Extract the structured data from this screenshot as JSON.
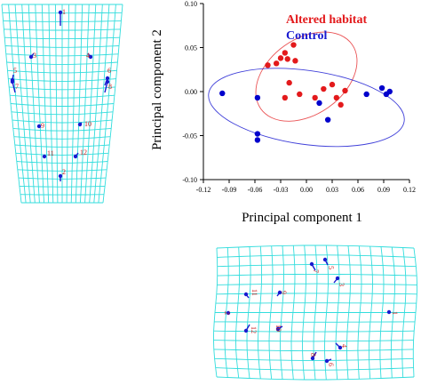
{
  "chart_data": {
    "type": "scatter",
    "title": "",
    "xlabel": "Principal component 1",
    "ylabel": "Principal component 2",
    "xlim": [
      -0.12,
      0.12
    ],
    "ylim": [
      -0.1,
      0.1
    ],
    "xticks": [
      -0.12,
      -0.09,
      -0.06,
      -0.03,
      0,
      0.03,
      0.06,
      0.09,
      0.12
    ],
    "xtick_labels": [
      "-0.12",
      "-0.09",
      "-0.06",
      "-0.03",
      "0.00",
      "0.03",
      "0.06",
      "0.09",
      "0.12"
    ],
    "yticks": [
      -0.1,
      -0.05,
      0,
      0.05,
      0.1
    ],
    "ytick_labels": [
      "-0.10",
      "-0.05",
      "0.00",
      "0.05",
      "0.10"
    ],
    "grid": false,
    "legend_position": "top-right",
    "series": [
      {
        "name": "Altered habitat",
        "color": "#e31a1c",
        "points": [
          [
            -0.015,
            0.053
          ],
          [
            -0.025,
            0.044
          ],
          [
            -0.03,
            0.038
          ],
          [
            -0.022,
            0.037
          ],
          [
            -0.013,
            0.035
          ],
          [
            -0.045,
            0.03
          ],
          [
            -0.035,
            0.032
          ],
          [
            -0.02,
            0.01
          ],
          [
            -0.025,
            -0.007
          ],
          [
            -0.008,
            -0.003
          ],
          [
            0.02,
            0.003
          ],
          [
            0.03,
            0.008
          ],
          [
            0.035,
            -0.007
          ],
          [
            0.045,
            0.001
          ],
          [
            0.04,
            -0.015
          ],
          [
            0.01,
            -0.007
          ]
        ]
      },
      {
        "name": "Control",
        "color": "#0000cc",
        "points": [
          [
            -0.098,
            -0.002
          ],
          [
            -0.057,
            -0.007
          ],
          [
            -0.057,
            -0.048
          ],
          [
            -0.057,
            -0.055
          ],
          [
            0.015,
            -0.013
          ],
          [
            0.025,
            -0.032
          ],
          [
            0.07,
            -0.003
          ],
          [
            0.088,
            0.004
          ],
          [
            0.093,
            -0.003
          ],
          [
            0.097,
            0.0
          ]
        ]
      }
    ],
    "ellipses": [
      {
        "series": "Altered habitat",
        "center": [
          0.0,
          0.017
        ],
        "rx": 0.065,
        "ry": 0.043,
        "angle_deg": -35
      },
      {
        "series": "Control",
        "center": [
          0.0,
          -0.018
        ],
        "rx": 0.115,
        "ry": 0.042,
        "angle_deg": 8
      }
    ]
  },
  "grid_panels": {
    "left": {
      "landmarks": [
        {
          "label": "1"
        },
        {
          "label": "2"
        },
        {
          "label": "3"
        },
        {
          "label": "4"
        },
        {
          "label": "5"
        },
        {
          "label": "6"
        },
        {
          "label": "7"
        },
        {
          "label": "8"
        },
        {
          "label": "9"
        },
        {
          "label": "10"
        },
        {
          "label": "11"
        },
        {
          "label": "12"
        }
      ]
    },
    "bottom": {
      "landmarks": [
        {
          "label": "1"
        },
        {
          "label": "2"
        },
        {
          "label": "3"
        },
        {
          "label": "4"
        },
        {
          "label": "5"
        },
        {
          "label": "6"
        },
        {
          "label": "7"
        },
        {
          "label": "8"
        },
        {
          "label": "9"
        },
        {
          "label": "10"
        },
        {
          "label": "11"
        },
        {
          "label": "12"
        }
      ]
    }
  }
}
